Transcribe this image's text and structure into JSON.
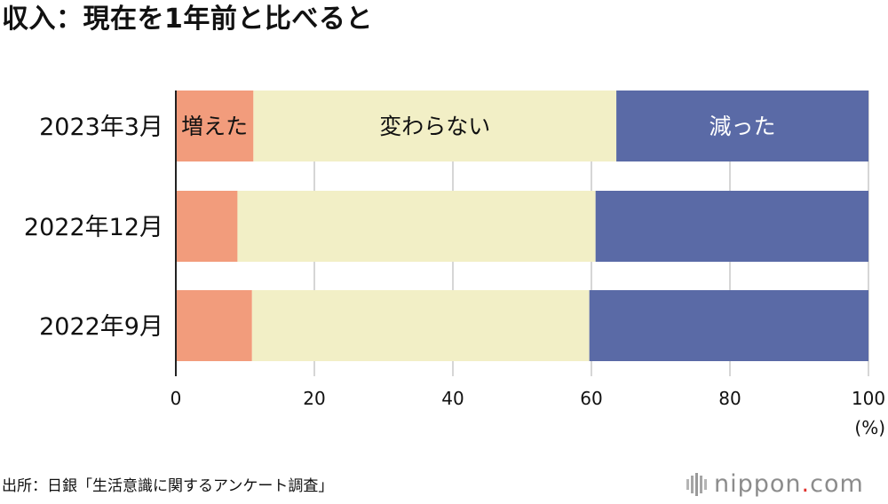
{
  "title": "収入：現在を1年前と比べると",
  "source": "出所：日銀「生活意識に関するアンケート調査」",
  "logo": {
    "name": "nippon",
    "dot": ".",
    "tld": "com"
  },
  "colors": {
    "increased": "#f29c7c",
    "unchanged": "#f2efc6",
    "decreased": "#5a6aa6",
    "grid": "#c8c8c8",
    "axis": "#222222"
  },
  "chart_data": {
    "type": "bar",
    "orientation": "horizontal",
    "stacked": true,
    "categories": [
      "2023年3月",
      "2022年12月",
      "2022年9月"
    ],
    "series": [
      {
        "name": "増えた",
        "values": [
          11.2,
          8.9,
          11.0
        ]
      },
      {
        "name": "変わらない",
        "values": [
          52.4,
          51.7,
          48.7
        ]
      },
      {
        "name": "減った",
        "values": [
          36.4,
          39.4,
          40.3
        ]
      }
    ],
    "xlim": [
      0,
      100
    ],
    "xticks": [
      0,
      20,
      40,
      60,
      80,
      100
    ],
    "xlabel": "(%)",
    "grid": true,
    "legend": "in-bar labels on first row"
  }
}
